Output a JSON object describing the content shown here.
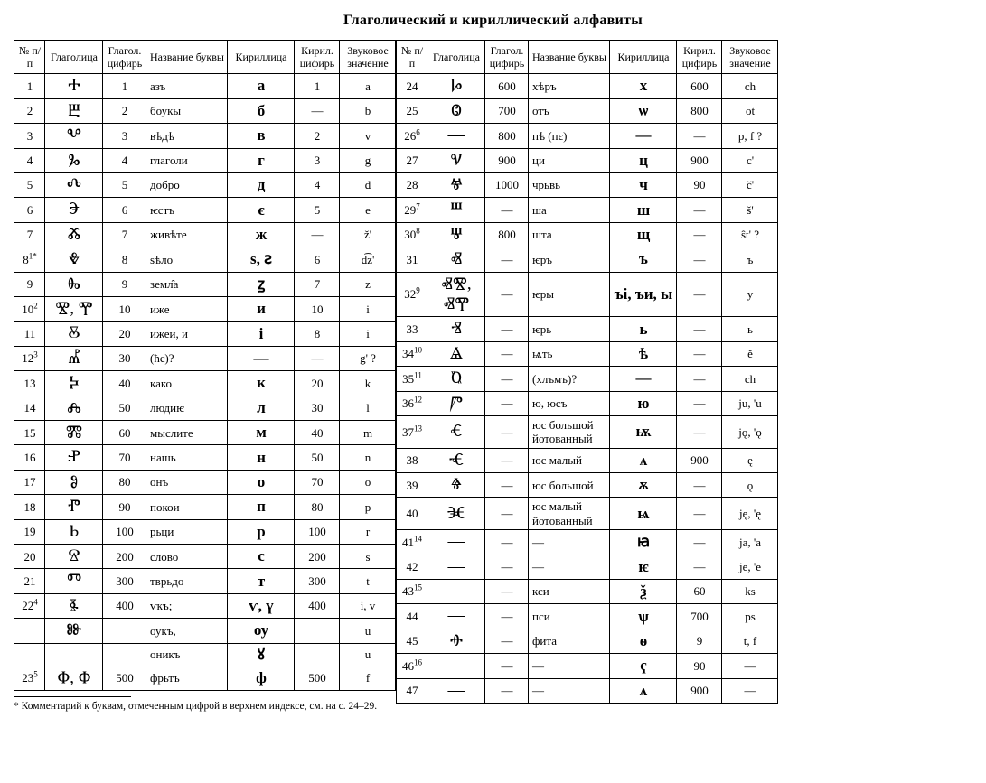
{
  "title": "Глаголический и кириллический алфавиты",
  "headers": {
    "num": "№ п/п",
    "glag": "Глаголица",
    "gnum": "Глагол. цифирь",
    "name": "Название буквы",
    "cyr": "Кириллица",
    "cnum": "Кирил. цифирь",
    "sound": "Звуковое значение"
  },
  "footnote": "* Комментарий к буквам, отмеченным цифрой в верхнем индексе, см. на с. 24–29.",
  "left": [
    {
      "num": "1",
      "glag": "Ⰰ",
      "gnum": "1",
      "name": "азъ",
      "cyr": "а",
      "cnum": "1",
      "sound": "a"
    },
    {
      "num": "2",
      "glag": "Ⰱ",
      "gnum": "2",
      "name": "боукы",
      "cyr": "б",
      "cnum": "—",
      "sound": "b"
    },
    {
      "num": "3",
      "glag": "Ⰲ",
      "gnum": "3",
      "name": "вѣдѣ",
      "cyr": "в",
      "cnum": "2",
      "sound": "v"
    },
    {
      "num": "4",
      "glag": "Ⰳ",
      "gnum": "4",
      "name": "глаголи",
      "cyr": "г",
      "cnum": "3",
      "sound": "g"
    },
    {
      "num": "5",
      "glag": "Ⰴ",
      "gnum": "5",
      "name": "добро",
      "cyr": "д",
      "cnum": "4",
      "sound": "d"
    },
    {
      "num": "6",
      "glag": "Ⰵ",
      "gnum": "6",
      "name": "ѥстъ",
      "cyr": "є",
      "cnum": "5",
      "sound": "e"
    },
    {
      "num": "7",
      "glag": "Ⰶ",
      "gnum": "7",
      "name": "живѣте",
      "cyr": "ж",
      "cnum": "—",
      "sound": "ž'"
    },
    {
      "num": "8",
      "sup": "1*",
      "glag": "Ⰷ",
      "gnum": "8",
      "name": "ѕѣло",
      "cyr": "ѕ, ꙅ",
      "cnum": "6",
      "sound": "d͡z'"
    },
    {
      "num": "9",
      "glag": "Ⰸ",
      "gnum": "9",
      "name": "земл̑а",
      "cyr": "ꙁ",
      "cnum": "7",
      "sound": "z"
    },
    {
      "num": "10",
      "sup": "2",
      "glag": "Ⰺ, Ⰹ",
      "gnum": "10",
      "name": "иже",
      "cyr": "и",
      "cnum": "10",
      "sound": "i"
    },
    {
      "num": "11",
      "glag": "Ⰻ",
      "gnum": "20",
      "name": "ижеи, и",
      "cyr": "і",
      "cnum": "8",
      "sound": "i"
    },
    {
      "num": "12",
      "sup": "3",
      "glag": "Ⰼ",
      "gnum": "30",
      "name": "(ћє)?",
      "cyr": "—",
      "cnum": "—",
      "sound": "g' ?"
    },
    {
      "num": "13",
      "glag": "Ⰽ",
      "gnum": "40",
      "name": "како",
      "cyr": "к",
      "cnum": "20",
      "sound": "k"
    },
    {
      "num": "14",
      "glag": "Ⰾ",
      "gnum": "50",
      "name": "людиѥ",
      "cyr": "л",
      "cnum": "30",
      "sound": "l"
    },
    {
      "num": "15",
      "glag": "Ⰿ",
      "gnum": "60",
      "name": "мыслите",
      "cyr": "м",
      "cnum": "40",
      "sound": "m"
    },
    {
      "num": "16",
      "glag": "Ⱀ",
      "gnum": "70",
      "name": "нашь",
      "cyr": "н",
      "cnum": "50",
      "sound": "n"
    },
    {
      "num": "17",
      "glag": "Ⱁ",
      "gnum": "80",
      "name": "онъ",
      "cyr": "о",
      "cnum": "70",
      "sound": "o"
    },
    {
      "num": "18",
      "glag": "Ⱂ",
      "gnum": "90",
      "name": "покои",
      "cyr": "п",
      "cnum": "80",
      "sound": "p"
    },
    {
      "num": "19",
      "glag": "Ⱃ",
      "gnum": "100",
      "name": "рьци",
      "cyr": "р",
      "cnum": "100",
      "sound": "r"
    },
    {
      "num": "20",
      "glag": "Ⱄ",
      "gnum": "200",
      "name": "слово",
      "cyr": "с",
      "cnum": "200",
      "sound": "s"
    },
    {
      "num": "21",
      "glag": "Ⱅ",
      "gnum": "300",
      "name": "тврьдо",
      "cyr": "т",
      "cnum": "300",
      "sound": "t"
    },
    {
      "num": "22",
      "sup": "4",
      "glag": "Ⱛ",
      "gnum": "400",
      "name": "ѵкъ;",
      "cyr": "ѵ, ү",
      "cnum": "400",
      "sound": "i, v"
    },
    {
      "num": "",
      "glag": "Ⱆ",
      "gnum": "",
      "name": "оукъ,",
      "cyr": "оу",
      "cnum": "",
      "sound": "u"
    },
    {
      "num": "",
      "glag": "",
      "gnum": "",
      "name": "оникъ",
      "cyr": "ꙋ",
      "cnum": "",
      "sound": "u"
    },
    {
      "num": "23",
      "sup": "5",
      "glag": "Ⱇ, Ⱇ",
      "gnum": "500",
      "name": "фрьтъ",
      "cyr": "ф",
      "cnum": "500",
      "sound": "f"
    }
  ],
  "right": [
    {
      "num": "24",
      "glag": "Ⱈ",
      "gnum": "600",
      "name": "хѣръ",
      "cyr": "х",
      "cnum": "600",
      "sound": "ch"
    },
    {
      "num": "25",
      "glag": "Ⱉ",
      "gnum": "700",
      "name": "отъ",
      "cyr": "ѡ",
      "cnum": "800",
      "sound": "ot"
    },
    {
      "num": "26",
      "sup": "6",
      "glag": "—",
      "gnum": "800",
      "name": "пѣ (пє)",
      "cyr": "—",
      "cnum": "—",
      "sound": "p, f ?"
    },
    {
      "num": "27",
      "glag": "Ⱌ",
      "gnum": "900",
      "name": "ци",
      "cyr": "ц",
      "cnum": "900",
      "sound": "c'"
    },
    {
      "num": "28",
      "glag": "Ⱍ",
      "gnum": "1000",
      "name": "чрьвь",
      "cyr": "ч",
      "cnum": "90",
      "sound": "č'"
    },
    {
      "num": "29",
      "sup": "7",
      "glag": "Ⱎ",
      "gnum": "—",
      "name": "ша",
      "cyr": "ш",
      "cnum": "—",
      "sound": "š'"
    },
    {
      "num": "30",
      "sup": "8",
      "glag": "Ⱋ",
      "gnum": "800",
      "name": "шта",
      "cyr": "щ",
      "cnum": "—",
      "sound": "ŝt' ?"
    },
    {
      "num": "31",
      "glag": "Ⱏ",
      "gnum": "—",
      "name": "ѥръ",
      "cyr": "ъ",
      "cnum": "—",
      "sound": "ъ"
    },
    {
      "num": "32",
      "sup": "9",
      "glag": "ⰟⰊ, ⰟⰉ",
      "gnum": "—",
      "name": "ѥры",
      "cyr": "ъі, ъи, ы",
      "cnum": "—",
      "sound": "y"
    },
    {
      "num": "33",
      "glag": "Ⱐ",
      "gnum": "—",
      "name": "ѥрь",
      "cyr": "ь",
      "cnum": "—",
      "sound": "ь"
    },
    {
      "num": "34",
      "sup": "10",
      "glag": "Ⱑ",
      "gnum": "—",
      "name": "ѩть",
      "cyr": "ѣ",
      "cnum": "—",
      "sound": "ě"
    },
    {
      "num": "35",
      "sup": "11",
      "glag": "Ⱒ",
      "gnum": "—",
      "name": "(хлъмъ)?",
      "cyr": "—",
      "cnum": "—",
      "sound": "ch"
    },
    {
      "num": "36",
      "sup": "12",
      "glag": "Ⱓ",
      "gnum": "—",
      "name": "ю, юсъ",
      "cyr": "ю",
      "cnum": "—",
      "sound": "ju, 'u"
    },
    {
      "num": "37",
      "sup": "13",
      "glag": "Ⱔ",
      "gnum": "—",
      "name": "юс большой йотованный",
      "cyr": "ѭ",
      "cnum": "—",
      "sound": "jǫ, 'ǫ"
    },
    {
      "num": "38",
      "glag": "Ⱕ",
      "gnum": "—",
      "name": "юс малый",
      "cyr": "ѧ",
      "cnum": "900",
      "sound": "ę"
    },
    {
      "num": "39",
      "glag": "Ⱖ",
      "gnum": "—",
      "name": "юс большой",
      "cyr": "ѫ",
      "cnum": "—",
      "sound": "ǫ"
    },
    {
      "num": "40",
      "glag": "Ⱗ",
      "gnum": "—",
      "name": "юс малый йотованный",
      "cyr": "ѩ",
      "cnum": "—",
      "sound": "ję, 'ę"
    },
    {
      "num": "41",
      "sup": "14",
      "glag": "—",
      "gnum": "—",
      "name": "—",
      "cyr": "ꙗ",
      "cnum": "—",
      "sound": "ja, 'a"
    },
    {
      "num": "42",
      "glag": "—",
      "gnum": "—",
      "name": "—",
      "cyr": "ѥ",
      "cnum": "—",
      "sound": "je, 'e"
    },
    {
      "num": "43",
      "sup": "15",
      "glag": "—",
      "gnum": "—",
      "name": "кси",
      "cyr": "ѯ",
      "cnum": "60",
      "sound": "ks"
    },
    {
      "num": "44",
      "glag": "—",
      "gnum": "—",
      "name": "пси",
      "cyr": "ѱ",
      "cnum": "700",
      "sound": "ps"
    },
    {
      "num": "45",
      "glag": "Ⱚ",
      "gnum": "—",
      "name": "фита",
      "cyr": "ѳ",
      "cnum": "9",
      "sound": "t, f"
    },
    {
      "num": "46",
      "sup": "16",
      "glag": "—",
      "gnum": "—",
      "name": "—",
      "cyr": "ҁ",
      "cnum": "90",
      "sound": "—"
    },
    {
      "num": "47",
      "glag": "—",
      "gnum": "—",
      "name": "—",
      "cyr": "ѧ",
      "cnum": "900",
      "sound": "—"
    }
  ]
}
